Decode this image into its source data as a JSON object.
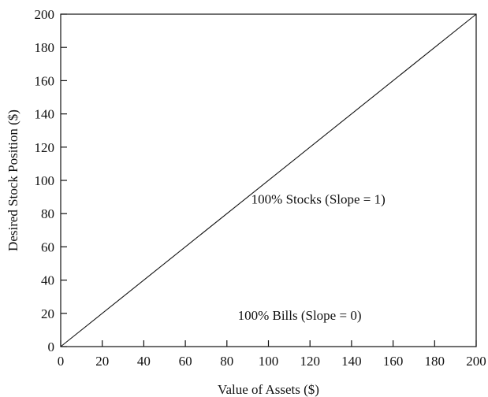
{
  "chart_data": {
    "type": "line",
    "title": "",
    "xlabel": "Value of Assets ($)",
    "ylabel": "Desired Stock Position ($)",
    "xlim": [
      0,
      200
    ],
    "ylim": [
      0,
      200
    ],
    "xticks": [
      0,
      20,
      40,
      60,
      80,
      100,
      120,
      140,
      160,
      180,
      200
    ],
    "yticks": [
      0,
      20,
      40,
      60,
      80,
      100,
      120,
      140,
      160,
      180,
      200
    ],
    "xtick_labels": [
      "0",
      "20",
      "40",
      "60",
      "80",
      "100",
      "120",
      "140",
      "160",
      "180",
      "200"
    ],
    "ytick_labels": [
      "0",
      "20",
      "40",
      "60",
      "80",
      "100",
      "120",
      "140",
      "160",
      "180",
      "200"
    ],
    "grid": false,
    "series": [
      {
        "x": [
          0,
          200
        ],
        "y": [
          0,
          200
        ],
        "line_style": "solid"
      },
      {
        "x": [
          0,
          200
        ],
        "y": [
          0,
          0
        ],
        "line_style": "dotted"
      }
    ],
    "annotations": [
      {
        "text": "100% Stocks (Slope = 1)",
        "x": 124,
        "y": 86
      },
      {
        "text": "100% Bills (Slope = 0)",
        "x": 115,
        "y": 16
      }
    ],
    "colors": {
      "line": "#111111",
      "background": "#ffffff"
    }
  }
}
